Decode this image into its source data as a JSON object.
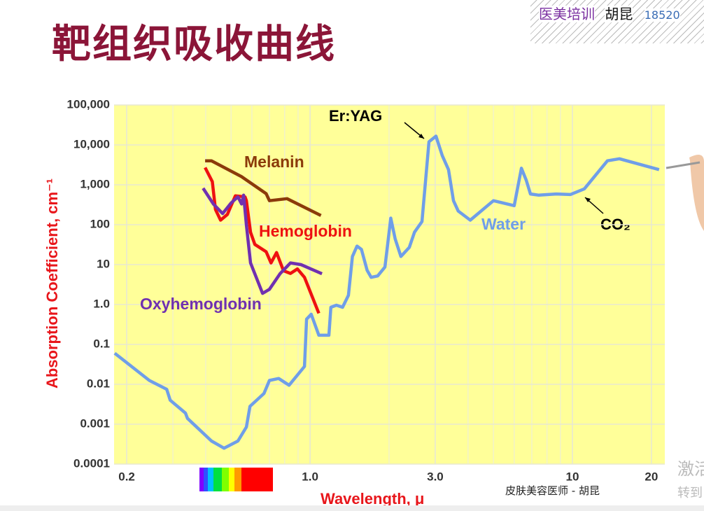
{
  "header": {
    "title": "靶组织吸收曲线",
    "brand": "医美培训",
    "author": "胡昆",
    "phone": "18520"
  },
  "footer": "皮肤美容医师 - 胡昆",
  "watermark": [
    "激活",
    "转到"
  ],
  "chart_data": {
    "type": "line",
    "log_x": true,
    "log_y": true,
    "grid": true,
    "x_label": "Wavelength, μ",
    "y_label": "Absorption Coefficient, cm⁻¹",
    "annotations": [
      "Er:YAG",
      "CO₂"
    ],
    "xlim": [
      0.179,
      22.5
    ],
    "ylim": [
      0.0001,
      100000
    ],
    "xticks": [
      0.2,
      {
        "value": 1,
        "label": "1.0"
      },
      {
        "value": 3,
        "label": "3.0"
      },
      10,
      20
    ],
    "yticks": [
      {
        "value": 100000,
        "label": "100,000"
      },
      {
        "value": 10000,
        "label": "10,000"
      },
      {
        "value": 1000,
        "label": "1,000"
      },
      100,
      10,
      {
        "value": 1,
        "label": "1.0"
      },
      0.1,
      0.01,
      0.001,
      0.0001
    ],
    "series": [
      {
        "name": "Water",
        "color": "#6f9ee8",
        "x": [
          0.18,
          0.244,
          0.284,
          0.293,
          0.335,
          0.341,
          0.421,
          0.47,
          0.531,
          0.572,
          0.59,
          0.667,
          0.7,
          0.759,
          0.832,
          0.952,
          0.97,
          1.01,
          1.08,
          1.18,
          1.2,
          1.26,
          1.33,
          1.4,
          1.45,
          1.51,
          1.57,
          1.65,
          1.71,
          1.81,
          1.93,
          2.03,
          2.11,
          2.22,
          2.39,
          2.5,
          2.67,
          2.84,
          3.02,
          3.19,
          3.37,
          3.52,
          3.67,
          4.08,
          5.0,
          6.0,
          6.39,
          6.67,
          6.92,
          7.45,
          8.68,
          9.82,
          11.1,
          13.6,
          15.1,
          21.4
        ],
        "values": [
          0.06,
          0.0125,
          0.0075,
          0.004,
          0.0019,
          0.0014,
          0.00038,
          0.00025,
          0.00038,
          0.00085,
          0.0028,
          0.0059,
          0.0125,
          0.014,
          0.0095,
          0.028,
          0.43,
          0.57,
          0.17,
          0.17,
          0.85,
          0.96,
          0.85,
          1.7,
          16,
          29,
          24,
          7.2,
          4.8,
          5.2,
          8.7,
          146,
          44,
          16,
          27,
          65,
          120,
          12000,
          16600,
          5400,
          2400,
          400,
          220,
          130,
          400,
          300,
          2600,
          1300,
          590,
          550,
          590,
          570,
          790,
          4000,
          4500,
          2400
        ]
      },
      {
        "name": "Melanin",
        "color": "#8b3a0a",
        "x": [
          0.398,
          0.421,
          0.548,
          0.68,
          0.7,
          0.817,
          1.1
        ],
        "values": [
          4000,
          4000,
          1600,
          600,
          400,
          450,
          170
        ]
      },
      {
        "name": "Hemoglobin",
        "color": "#ee1111",
        "x": [
          0.398,
          0.424,
          0.436,
          0.456,
          0.484,
          0.519,
          0.565,
          0.572,
          0.593,
          0.616,
          0.68,
          0.71,
          0.745,
          0.792,
          0.842,
          0.895,
          0.952,
          1.08
        ],
        "values": [
          2700,
          1200,
          240,
          130,
          180,
          530,
          500,
          400,
          65,
          32,
          21,
          11,
          20,
          7,
          6,
          7.8,
          4.8,
          0.6
        ]
      },
      {
        "name": "Oxyhemoglobin",
        "color": "#7030b0",
        "x": [
          0.391,
          0.428,
          0.464,
          0.5,
          0.531,
          0.548,
          0.558,
          0.572,
          0.593,
          0.659,
          0.7,
          0.768,
          0.842,
          0.923,
          1.11
        ],
        "values": [
          820,
          330,
          190,
          350,
          500,
          330,
          550,
          98,
          11,
          1.9,
          2.4,
          5.9,
          11,
          10,
          5.9
        ]
      }
    ]
  }
}
